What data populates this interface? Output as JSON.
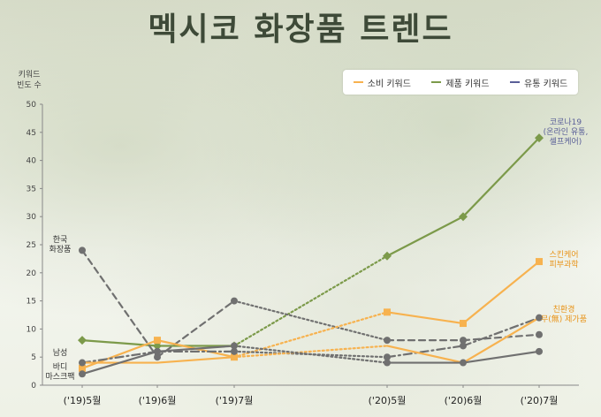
{
  "title": "멕시코 화장품 트렌드",
  "legend": [
    {
      "name": "소비 키워드",
      "color": "#f7b24f"
    },
    {
      "name": "제품 키워드",
      "color": "#7c9a4a"
    },
    {
      "name": "유통 키워드",
      "color": "#5a5f98"
    }
  ],
  "chart_data": {
    "type": "line",
    "ylabel": "키워드 빈도 수",
    "ylabel_lines": [
      "키워드",
      "빈도 수"
    ],
    "ylim": [
      0,
      50
    ],
    "yticks": [
      0,
      5,
      10,
      15,
      20,
      25,
      30,
      35,
      40,
      45,
      50
    ],
    "grid": false,
    "legend_position": "top-right",
    "categories": [
      "('19)5월",
      "('19)6월",
      "('19)7월",
      "('20)5월",
      "('20)6월",
      "('20)7월"
    ],
    "series": [
      {
        "id": "corona19",
        "color": "#7c9a4a",
        "marker": "diamond",
        "dash": "solid",
        "values": [
          8,
          7,
          7,
          23,
          30,
          44
        ]
      },
      {
        "id": "korea-cosmetics",
        "color": "#707070",
        "marker": "circle",
        "dash": "dashed",
        "values": [
          24,
          5,
          15,
          8,
          8,
          9
        ]
      },
      {
        "id": "skincare-dermo",
        "color": "#f7b24f",
        "marker": "square",
        "dash": "solid",
        "values": [
          3,
          8,
          5,
          13,
          11,
          22
        ]
      },
      {
        "id": "eco-free",
        "color": "#707070",
        "marker": "circle",
        "dash": "dashdot",
        "values": [
          4,
          6,
          6,
          5,
          7,
          12
        ]
      },
      {
        "id": "men",
        "color": "#f7b24f",
        "marker": "none",
        "dash": "solid",
        "values": [
          4,
          4,
          5,
          7,
          4,
          12
        ]
      },
      {
        "id": "body",
        "color": "#707070",
        "marker": "circle",
        "dash": "solid",
        "values": [
          2,
          6,
          7,
          4,
          4,
          6
        ]
      }
    ],
    "bridge_style": "dotted",
    "annotations": [
      {
        "text": [
          "코로나19",
          "(온라인 유통,",
          "셀프케어)"
        ],
        "color": "#5a5f98"
      },
      {
        "text": [
          "한국",
          "화장품"
        ],
        "color": "#333333"
      },
      {
        "text": [
          "스킨케어",
          "피부과학"
        ],
        "color": "#e8941a"
      },
      {
        "text": [
          "친환경",
          "무(無) 제가품"
        ],
        "color": "#e8941a"
      },
      {
        "text": [
          "남성"
        ],
        "color": "#333333"
      },
      {
        "text": [
          "바디",
          "마스크팩"
        ],
        "color": "#333333"
      }
    ]
  }
}
